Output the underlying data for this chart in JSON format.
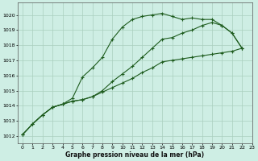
{
  "title": "Graphe pression niveau de la mer (hPa)",
  "background_color": "#ceeee4",
  "line_color": "#1e5c1e",
  "grid_color": "#aacfbe",
  "xlim": [
    -0.5,
    23
  ],
  "ylim": [
    1011.5,
    1020.8
  ],
  "yticks": [
    1012,
    1013,
    1014,
    1015,
    1016,
    1017,
    1018,
    1019,
    1020
  ],
  "xticks": [
    0,
    1,
    2,
    3,
    4,
    5,
    6,
    7,
    8,
    9,
    10,
    11,
    12,
    13,
    14,
    15,
    16,
    17,
    18,
    19,
    20,
    21,
    22,
    23
  ],
  "series": [
    {
      "x": [
        0,
        1,
        2,
        3,
        4,
        5,
        6,
        7,
        8,
        9,
        10,
        11,
        12,
        13,
        14,
        15,
        16,
        17,
        18,
        19,
        20,
        21,
        22
      ],
      "y": [
        1012.1,
        1012.8,
        1013.4,
        1013.9,
        1014.1,
        1014.5,
        1015.9,
        1016.5,
        1017.2,
        1018.4,
        1019.2,
        1019.7,
        1019.9,
        1020.0,
        1020.1,
        1019.9,
        1019.7,
        1019.8,
        1019.7,
        1019.7,
        1019.3,
        1018.8,
        1017.8
      ]
    },
    {
      "x": [
        0,
        1,
        2,
        3,
        4,
        5,
        6,
        7,
        8,
        9,
        10,
        11,
        12,
        13,
        14,
        15,
        16,
        17,
        18,
        19,
        20,
        21,
        22
      ],
      "y": [
        1012.1,
        1012.8,
        1013.4,
        1013.9,
        1014.1,
        1014.3,
        1014.4,
        1014.6,
        1015.0,
        1015.6,
        1016.1,
        1016.6,
        1017.2,
        1017.8,
        1018.4,
        1018.5,
        1018.8,
        1019.0,
        1019.3,
        1019.5,
        1019.3,
        1018.8,
        1017.8
      ]
    },
    {
      "x": [
        0,
        1,
        2,
        3,
        4,
        5,
        6,
        7,
        8,
        9,
        10,
        11,
        12,
        13,
        14,
        15,
        16,
        17,
        18,
        19,
        20,
        21,
        22
      ],
      "y": [
        1012.1,
        1012.8,
        1013.4,
        1013.9,
        1014.1,
        1014.3,
        1014.4,
        1014.6,
        1014.9,
        1015.2,
        1015.5,
        1015.8,
        1016.2,
        1016.5,
        1016.9,
        1017.0,
        1017.1,
        1017.2,
        1017.3,
        1017.4,
        1017.5,
        1017.6,
        1017.8
      ]
    }
  ]
}
